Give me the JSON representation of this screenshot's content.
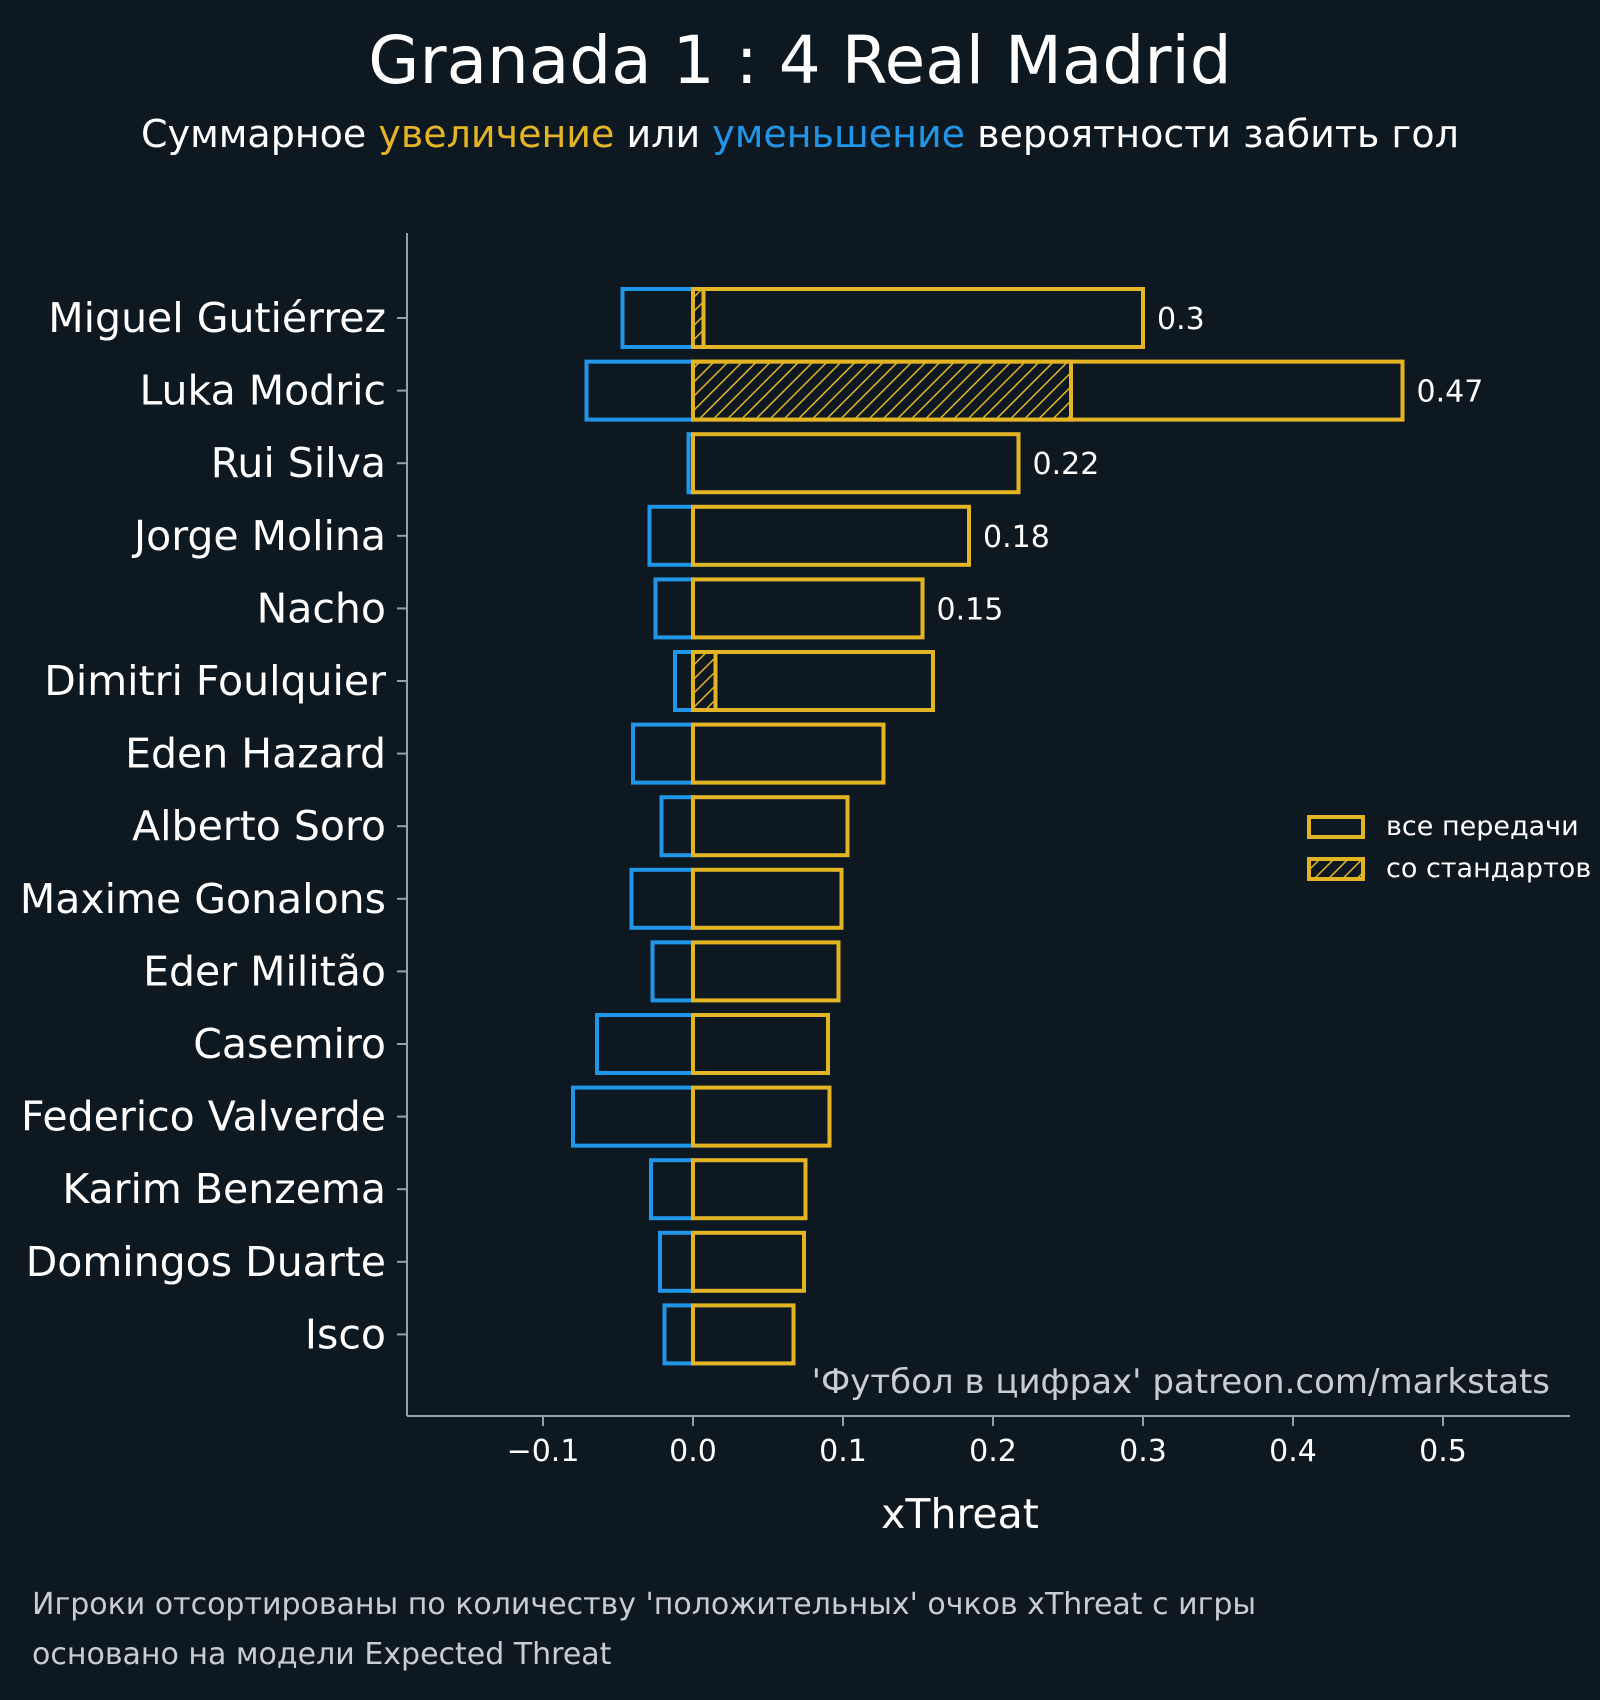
{
  "title": "Granada 1 : 4 Real Madrid",
  "subtitle": {
    "prefix": "Суммарное ",
    "increase": "увеличение",
    "middle": " или ",
    "decrease": "уменьшение",
    "suffix": " вероятности забить гол"
  },
  "watermark": "'Футбол в цифрах' patreon.com/markstats",
  "footnote": {
    "line1": "Игроки отсортированы по количеству 'положительных' очков xThreat с игры",
    "line2": "основано на модели Expected Threat"
  },
  "colors": {
    "background": "#0e1821",
    "positive": "#e3b423",
    "negative": "#2196e8",
    "axis": "#8fa3ab"
  },
  "chart_data": {
    "type": "bar",
    "orientation": "horizontal",
    "xlabel": "xThreat",
    "xlim": [
      -0.19,
      0.58
    ],
    "xticks": [
      -0.1,
      0.0,
      0.1,
      0.2,
      0.3,
      0.4,
      0.5
    ],
    "xtick_labels": [
      "−0.1",
      "0.0",
      "0.1",
      "0.2",
      "0.3",
      "0.4",
      "0.5"
    ],
    "categories": [
      "Miguel Gutiérrez",
      "Luka Modric",
      "Rui Silva",
      "Jorge Molina",
      "Nacho",
      "Dimitri Foulquier",
      "Eden Hazard",
      "Alberto Soro",
      "Maxime Gonalons",
      "Eder Militão",
      "Casemiro",
      "Federico Valverde",
      "Karim Benzema",
      "Domingos Duarte",
      "Isco"
    ],
    "series": [
      {
        "name": "все передачи",
        "kind": "positive",
        "values": [
          0.3,
          0.473,
          0.217,
          0.184,
          0.153,
          0.16,
          0.127,
          0.103,
          0.099,
          0.097,
          0.09,
          0.091,
          0.075,
          0.074,
          0.067
        ]
      },
      {
        "name": "со стандартов",
        "kind": "set_pieces",
        "values": [
          0.007,
          0.252,
          0.0,
          0.0,
          0.0,
          0.015,
          0.0,
          0.0,
          0.0,
          0.0,
          0.0,
          0.0,
          0.0,
          0.0,
          0.0
        ]
      },
      {
        "name": "negative",
        "kind": "negative",
        "values": [
          -0.047,
          -0.071,
          -0.003,
          -0.029,
          -0.025,
          -0.012,
          -0.04,
          -0.021,
          -0.041,
          -0.027,
          -0.064,
          -0.08,
          -0.028,
          -0.022,
          -0.019
        ]
      }
    ],
    "value_labels": [
      "0.3",
      "0.47",
      "0.22",
      "0.18",
      "0.15",
      "",
      "",
      "",
      "",
      "",
      "",
      "",
      "",
      "",
      ""
    ],
    "legend": {
      "position": "right",
      "items": [
        "все передачи",
        "со стандартов"
      ]
    }
  }
}
